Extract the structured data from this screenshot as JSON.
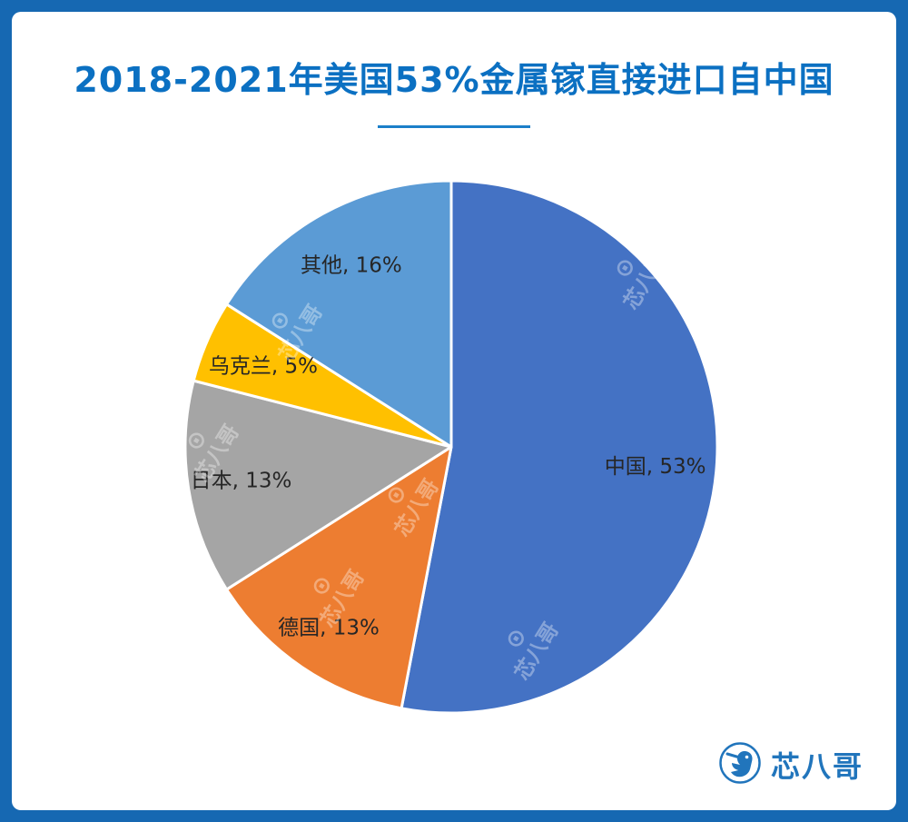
{
  "page": {
    "outer_background": "#1668B2",
    "card_background": "#FFFFFF"
  },
  "header": {
    "title": "2018-2021年美国53%金属镓直接进口自中国",
    "title_color": "#0B70C2",
    "divider_color": "#1C7FC9"
  },
  "chart_data": {
    "type": "pie",
    "title": "2018-2021年美国53%金属镓直接进口自中国",
    "start_angle_deg": 0,
    "direction": "clockwise",
    "donut": false,
    "legend": "none",
    "label_format": "{label}, {value}%",
    "label_color": "#262626",
    "slices": [
      {
        "label": "中国",
        "value": 53,
        "display": "中国, 53%",
        "color": "#4472C4",
        "label_radius": 0.77
      },
      {
        "label": "德国",
        "value": 13,
        "display": "德国, 13%",
        "color": "#ED7D31",
        "label_radius": 0.82
      },
      {
        "label": "日本",
        "value": 13,
        "display": "日本, 13%",
        "color": "#A5A5A5",
        "label_radius": 0.8
      },
      {
        "label": "乌克兰",
        "value": 5,
        "display": "乌克兰, 5%",
        "color": "#FFC000",
        "label_radius": 0.77
      },
      {
        "label": "其他",
        "value": 16,
        "display": "其他, 16%",
        "color": "#5B9BD5",
        "label_radius": 0.78
      }
    ]
  },
  "watermark": {
    "icon": "⊙",
    "text": "芯八哥"
  },
  "footer": {
    "brand_name": "芯八哥",
    "brand_color": "#2175BC"
  }
}
